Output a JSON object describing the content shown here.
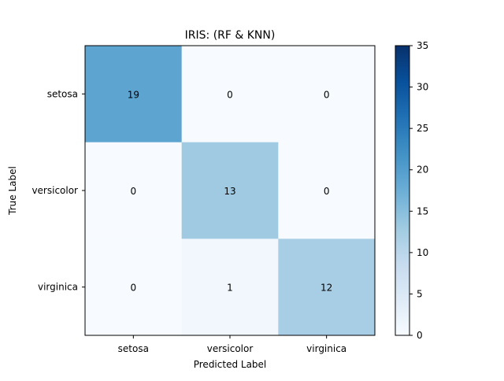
{
  "chart_data": {
    "type": "heatmap",
    "title": "IRIS: (RF & KNN)",
    "xlabel": "Predicted Label",
    "ylabel": "True Label",
    "x_categories": [
      "setosa",
      "versicolor",
      "virginica"
    ],
    "y_categories": [
      "setosa",
      "versicolor",
      "virginica"
    ],
    "values": [
      [
        19,
        0,
        0
      ],
      [
        0,
        13,
        0
      ],
      [
        0,
        1,
        12
      ]
    ],
    "colorbar": {
      "min": 0,
      "max": 35,
      "ticks": [
        "0",
        "5",
        "10",
        "15",
        "20",
        "25",
        "30",
        "35"
      ]
    },
    "colormap": "Blues",
    "grid": false
  }
}
